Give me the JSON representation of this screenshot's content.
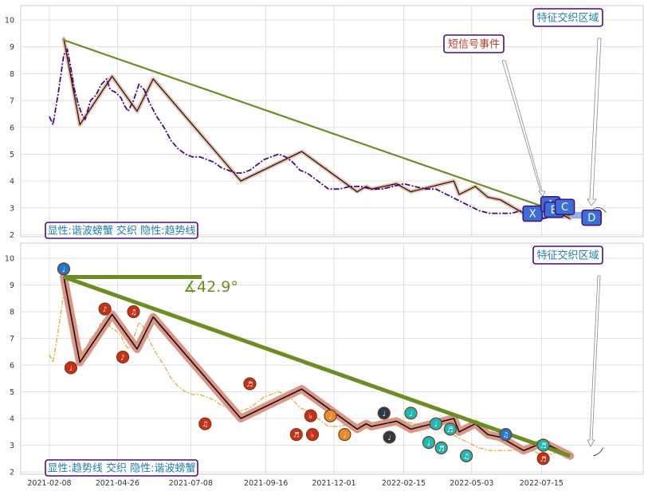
{
  "chart_data": [
    {
      "type": "line",
      "panel": "top",
      "xlabel": "",
      "ylabel": "",
      "ylim": [
        2,
        10.5
      ],
      "yticks": [
        2,
        3,
        4,
        5,
        6,
        7,
        8,
        9,
        10
      ],
      "grid": true,
      "price": [
        [
          0,
          6.4
        ],
        [
          2,
          6.1
        ],
        [
          5,
          7.3
        ],
        [
          8,
          8.7
        ],
        [
          10,
          8.9
        ],
        [
          12,
          8.2
        ],
        [
          14,
          7.4
        ],
        [
          16,
          6.9
        ],
        [
          18,
          6.5
        ],
        [
          20,
          6.3
        ],
        [
          23,
          7.0
        ],
        [
          26,
          7.2
        ],
        [
          29,
          7.6
        ],
        [
          32,
          7.8
        ],
        [
          34,
          7.4
        ],
        [
          37,
          7.3
        ],
        [
          40,
          7.1
        ],
        [
          42,
          6.8
        ],
        [
          44,
          6.6
        ],
        [
          47,
          7.0
        ],
        [
          50,
          7.6
        ],
        [
          53,
          7.4
        ],
        [
          56,
          6.9
        ],
        [
          60,
          6.4
        ],
        [
          64,
          6.0
        ],
        [
          68,
          5.5
        ],
        [
          72,
          5.2
        ],
        [
          76,
          5.0
        ],
        [
          80,
          4.9
        ],
        [
          84,
          4.9
        ],
        [
          88,
          4.8
        ],
        [
          92,
          4.7
        ],
        [
          96,
          4.5
        ],
        [
          100,
          4.4
        ],
        [
          104,
          4.3
        ],
        [
          108,
          4.3
        ],
        [
          112,
          4.4
        ],
        [
          116,
          4.6
        ],
        [
          120,
          4.8
        ],
        [
          124,
          4.9
        ],
        [
          128,
          5.0
        ],
        [
          132,
          4.9
        ],
        [
          136,
          4.7
        ],
        [
          140,
          4.4
        ],
        [
          144,
          4.3
        ],
        [
          150,
          4.0
        ],
        [
          156,
          3.7
        ],
        [
          162,
          3.7
        ],
        [
          168,
          3.8
        ],
        [
          174,
          3.8
        ],
        [
          180,
          3.7
        ],
        [
          186,
          3.7
        ],
        [
          192,
          3.8
        ],
        [
          198,
          3.9
        ],
        [
          204,
          3.8
        ],
        [
          210,
          3.7
        ],
        [
          216,
          3.7
        ],
        [
          222,
          3.5
        ],
        [
          228,
          3.3
        ],
        [
          234,
          3.1
        ],
        [
          240,
          2.9
        ],
        [
          246,
          2.8
        ],
        [
          252,
          2.8
        ],
        [
          258,
          2.8
        ],
        [
          264,
          2.9
        ],
        [
          270,
          2.8
        ],
        [
          276,
          2.6
        ],
        [
          282,
          2.7
        ],
        [
          288,
          2.8
        ]
      ],
      "zigzag": [
        [
          8,
          9.3
        ],
        [
          17,
          6.1
        ],
        [
          35,
          7.9
        ],
        [
          49,
          6.6
        ],
        [
          58,
          7.8
        ],
        [
          107,
          4.0
        ],
        [
          141,
          5.1
        ],
        [
          172,
          3.6
        ],
        [
          177,
          3.8
        ],
        [
          180,
          3.7
        ],
        [
          194,
          3.9
        ],
        [
          202,
          3.6
        ],
        [
          226,
          4.0
        ],
        [
          229,
          3.5
        ],
        [
          238,
          3.8
        ],
        [
          245,
          3.4
        ],
        [
          252,
          3.3
        ],
        [
          265,
          2.8
        ],
        [
          276,
          3.1
        ],
        [
          291,
          2.6
        ]
      ],
      "trendline": [
        [
          8,
          9.25
        ],
        [
          291,
          2.7
        ]
      ],
      "markers": [
        {
          "label": "X",
          "x": 270,
          "y": 2.8
        },
        {
          "label": "A",
          "x": 280,
          "y": 3.15
        },
        {
          "label": "B",
          "x": 282,
          "y": 2.95
        },
        {
          "label": "C",
          "x": 288,
          "y": 3.05
        },
        {
          "label": "D",
          "x": 303,
          "y": 2.65
        }
      ],
      "annotations": [
        {
          "text": "特征交织区域"
        },
        {
          "text": "短信号事件"
        }
      ],
      "legend_box": "显性:谐波螃蟹 交织 隐性:趋势线"
    },
    {
      "type": "line",
      "panel": "bottom",
      "xlabel": "",
      "ylabel": "",
      "ylim": [
        1.8,
        10.5
      ],
      "yticks": [
        2,
        3,
        4,
        5,
        6,
        7,
        8,
        9,
        10
      ],
      "grid": true,
      "xticks": [
        "2021-02-08",
        "2021-04-26",
        "2021-07-08",
        "2021-09-16",
        "2021-12-01",
        "2022-02-15",
        "2022-05-03",
        "2022-07-15"
      ],
      "xtick_positions": [
        0,
        38,
        79,
        121,
        159,
        198,
        236,
        275
      ],
      "zigzag": [
        [
          8,
          9.3
        ],
        [
          17,
          6.1
        ],
        [
          35,
          7.9
        ],
        [
          49,
          6.6
        ],
        [
          58,
          7.8
        ],
        [
          107,
          4.0
        ],
        [
          141,
          5.1
        ],
        [
          172,
          3.6
        ],
        [
          177,
          3.8
        ],
        [
          180,
          3.7
        ],
        [
          194,
          3.9
        ],
        [
          202,
          3.6
        ],
        [
          226,
          4.0
        ],
        [
          229,
          3.5
        ],
        [
          238,
          3.8
        ],
        [
          245,
          3.4
        ],
        [
          252,
          3.3
        ],
        [
          265,
          2.8
        ],
        [
          276,
          3.1
        ],
        [
          291,
          2.6
        ]
      ],
      "trendline": [
        [
          8,
          9.3
        ],
        [
          291,
          2.6
        ]
      ],
      "angle_label": "∡42.9°",
      "notes": [
        {
          "x": 8,
          "y": 9.6,
          "c": "#1f77d4",
          "g": "♩"
        },
        {
          "x": 12,
          "y": 5.9,
          "c": "#c8301a",
          "g": "♩"
        },
        {
          "x": 31,
          "y": 8.1,
          "c": "#c8301a",
          "g": "♪"
        },
        {
          "x": 41,
          "y": 6.3,
          "c": "#c8301a",
          "g": "♪"
        },
        {
          "x": 47,
          "y": 8.0,
          "c": "#c8301a",
          "g": "♫"
        },
        {
          "x": 87,
          "y": 3.8,
          "c": "#c8301a",
          "g": "♫"
        },
        {
          "x": 112,
          "y": 5.3,
          "c": "#c8301a",
          "g": "♬"
        },
        {
          "x": 138,
          "y": 3.4,
          "c": "#c8301a",
          "g": "♬"
        },
        {
          "x": 146,
          "y": 4.1,
          "c": "#c8301a",
          "g": "♭"
        },
        {
          "x": 147,
          "y": 3.4,
          "c": "#c8301a",
          "g": "♭"
        },
        {
          "x": 157,
          "y": 4.1,
          "c": "#e88a2a",
          "g": "♩"
        },
        {
          "x": 165,
          "y": 3.4,
          "c": "#e88a2a",
          "g": "♩"
        },
        {
          "x": 187,
          "y": 4.2,
          "c": "#2b3a4a",
          "g": "♩"
        },
        {
          "x": 190,
          "y": 3.3,
          "c": "#2b3a4a",
          "g": "♩"
        },
        {
          "x": 202,
          "y": 4.2,
          "c": "#1fb8b8",
          "g": "♩"
        },
        {
          "x": 212,
          "y": 3.1,
          "c": "#1fb8b8",
          "g": "♩"
        },
        {
          "x": 216,
          "y": 3.8,
          "c": "#1fb8b8",
          "g": "♩"
        },
        {
          "x": 219,
          "y": 2.9,
          "c": "#1fb8b8",
          "g": "♬"
        },
        {
          "x": 224,
          "y": 3.6,
          "c": "#1fb8b8",
          "g": "♬"
        },
        {
          "x": 233,
          "y": 2.6,
          "c": "#1fb8b8",
          "g": "♫"
        },
        {
          "x": 255,
          "y": 3.4,
          "c": "#1f77d4",
          "g": "♫"
        },
        {
          "x": 276,
          "y": 3.0,
          "c": "#1fb8b8",
          "g": "♬"
        },
        {
          "x": 276,
          "y": 2.5,
          "c": "#c8301a",
          "g": "♬"
        }
      ],
      "annotations": [
        {
          "text": "特征交织区域"
        }
      ],
      "legend_box": "显性:趋势线 交织 隐性:谐波螃蟹"
    }
  ],
  "colors": {
    "price_top": "#4b0a7a",
    "price_bottom": "#e8b040",
    "zigzag_fill_top": "#e8b6a0",
    "zigzag_fill_bottom": "#d98a78",
    "trend": "#6b8e23",
    "label_text": "#1f7fa8",
    "box_border": "#4b0a7a",
    "marker_fill": "#3a6fd6"
  }
}
